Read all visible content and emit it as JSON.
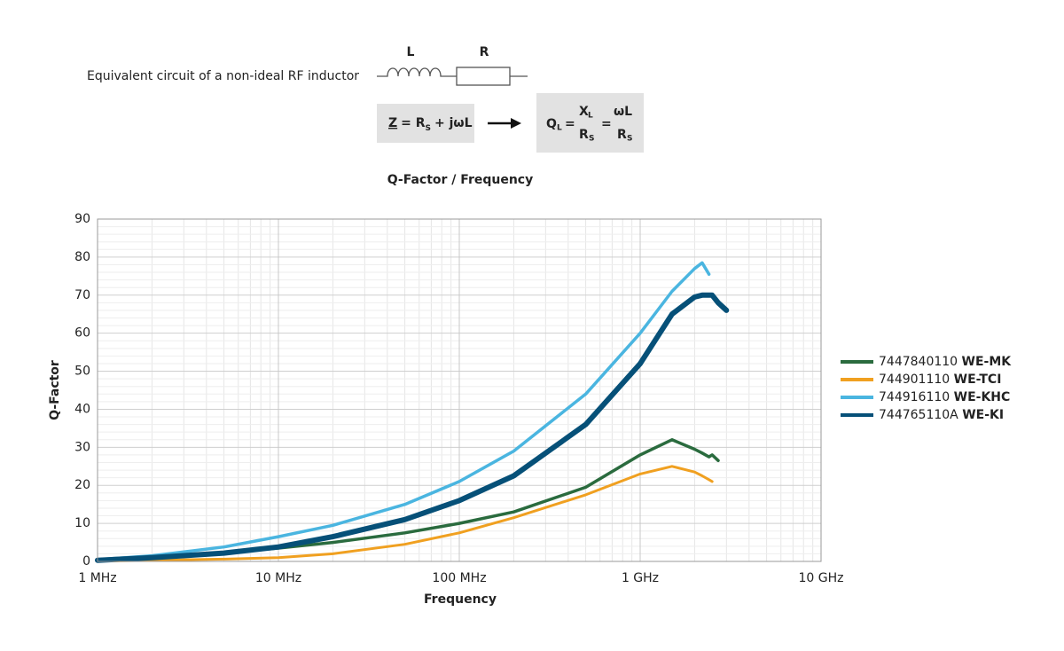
{
  "diagram": {
    "caption": "Equivalent circuit of a non-ideal RF inductor",
    "inductor_label": "L",
    "resistor_label": "R",
    "impedance": [
      "Z",
      "= R",
      "S",
      "+ jωL"
    ],
    "q_formula": {
      "q": "Q",
      "q_sub": "L",
      "eq1": "=",
      "num1": "X",
      "num1_sub": "L",
      "den1": "R",
      "den1_sub": "S",
      "eq2": "=",
      "num2": "ωL",
      "den2": "R",
      "den2_sub": "S"
    }
  },
  "chart_data": {
    "type": "line",
    "title": "Q-Factor / Frequency",
    "x_label": "Frequency",
    "y_label": "Q-Factor",
    "x_scale": "log",
    "xlim": [
      1000000,
      10000000000
    ],
    "xticks": [
      {
        "value": 1000000,
        "label": "1 MHz"
      },
      {
        "value": 10000000,
        "label": "10 MHz"
      },
      {
        "value": 100000000,
        "label": "100 MHz"
      },
      {
        "value": 1000000000,
        "label": "1 GHz"
      },
      {
        "value": 10000000000,
        "label": "10 GHz"
      }
    ],
    "ylim": [
      0,
      90
    ],
    "yticks": [
      0,
      10,
      20,
      30,
      40,
      50,
      60,
      70,
      80,
      90
    ],
    "grid": true,
    "minor_grid": true,
    "legend": "right",
    "x": [
      1000000,
      2000000,
      5000000,
      10000000,
      20000000,
      50000000,
      100000000,
      200000000,
      500000000,
      1000000000,
      1500000000,
      2000000000,
      2200000000,
      2400000000,
      2500000000,
      2700000000,
      3000000000
    ],
    "series": [
      {
        "name": "7447840110 WE-MK",
        "color": "#2a6b3e",
        "values": [
          0.3,
          1,
          2.3,
          3.5,
          5,
          7.5,
          10,
          13,
          19.5,
          28,
          32,
          29.5,
          28.5,
          27.5,
          28,
          26.5,
          null
        ]
      },
      {
        "name": "744901110 WE-TCI",
        "color": "#f0a020",
        "values": [
          0.1,
          0.3,
          0.6,
          1,
          2,
          4.5,
          7.5,
          11.5,
          17.5,
          23,
          25,
          23.5,
          22.5,
          21.5,
          21,
          null,
          null
        ]
      },
      {
        "name": "744916110 WE-KHC",
        "color": "#4ab5e0",
        "values": [
          0.5,
          1.5,
          3.8,
          6.5,
          9.5,
          15,
          21,
          29,
          44,
          60,
          71,
          77,
          78.5,
          75.5,
          null,
          null,
          null
        ]
      },
      {
        "name": "744765110A WE-KI",
        "color": "#065078",
        "values": [
          0.3,
          1,
          2.2,
          3.8,
          6.5,
          11,
          16,
          22.5,
          36,
          52,
          65,
          69.5,
          70,
          70,
          70,
          68,
          66
        ]
      }
    ]
  }
}
